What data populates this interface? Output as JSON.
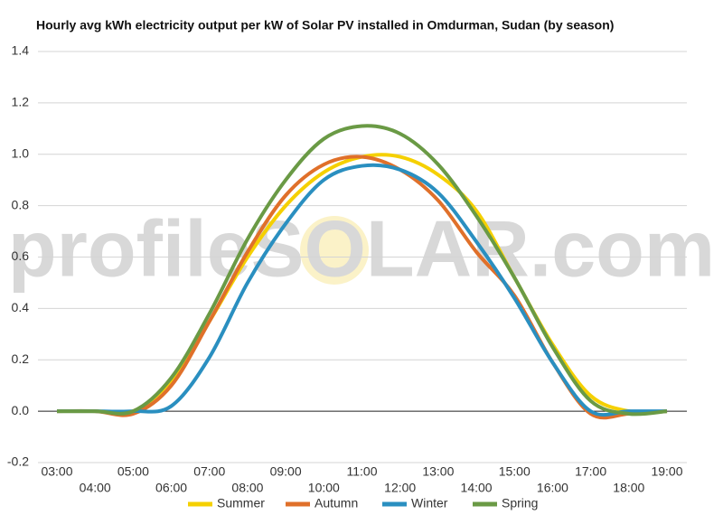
{
  "chart_data": {
    "type": "line",
    "title": "Hourly avg kWh electricity output per kW of Solar PV installed in Omdurman, Sudan (by season)",
    "watermark": "profileSOLAR.com",
    "categories": [
      "03:00",
      "04:00",
      "05:00",
      "06:00",
      "07:00",
      "08:00",
      "09:00",
      "10:00",
      "11:00",
      "12:00",
      "13:00",
      "14:00",
      "15:00",
      "16:00",
      "17:00",
      "18:00",
      "19:00"
    ],
    "series": [
      {
        "name": "Summer",
        "color": "#f5d000",
        "values": [
          0,
          0,
          0,
          0.12,
          0.35,
          0.6,
          0.8,
          0.93,
          0.99,
          0.99,
          0.92,
          0.78,
          0.52,
          0.26,
          0.06,
          0,
          0
        ]
      },
      {
        "name": "Autumn",
        "color": "#e0702a",
        "values": [
          0,
          0,
          -0.01,
          0.1,
          0.35,
          0.62,
          0.84,
          0.96,
          0.99,
          0.94,
          0.82,
          0.62,
          0.45,
          0.19,
          -0.01,
          -0.01,
          0
        ]
      },
      {
        "name": "Winter",
        "color": "#2a8fc0",
        "values": [
          0,
          0,
          0,
          0.02,
          0.21,
          0.5,
          0.73,
          0.9,
          0.955,
          0.94,
          0.85,
          0.66,
          0.44,
          0.19,
          0,
          0,
          0
        ]
      },
      {
        "name": "Spring",
        "color": "#6a9a45",
        "values": [
          0,
          0,
          0,
          0.13,
          0.38,
          0.67,
          0.9,
          1.06,
          1.11,
          1.08,
          0.96,
          0.76,
          0.52,
          0.25,
          0.04,
          -0.01,
          0
        ]
      }
    ],
    "ylim": [
      -0.2,
      1.4
    ],
    "yticks": [
      -0.2,
      {
        "value": 0,
        "label": "0.0"
      },
      0.2,
      0.4,
      0.6,
      0.8,
      {
        "value": 1,
        "label": "1.0"
      },
      1.2,
      1.4
    ],
    "grid": true,
    "legend": "bottom"
  }
}
